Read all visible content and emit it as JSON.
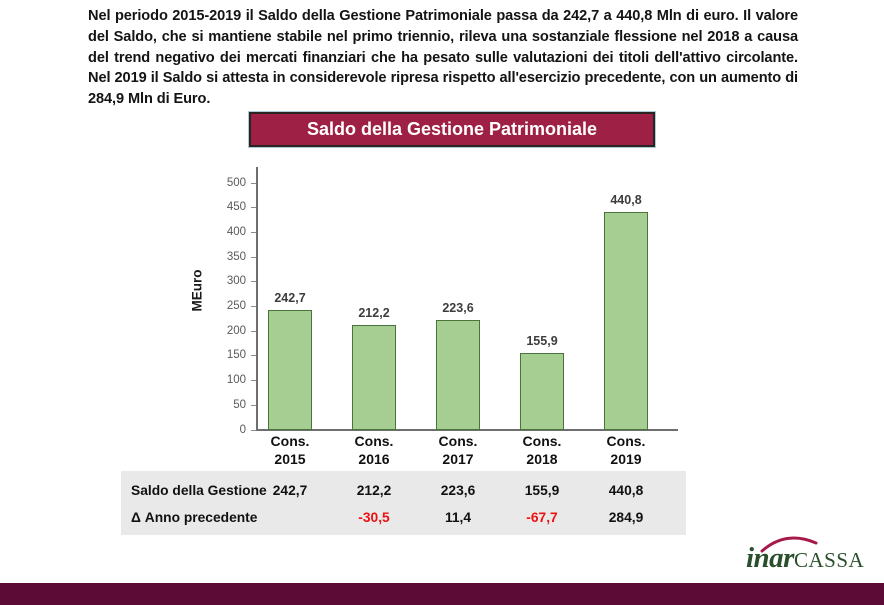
{
  "intro_text": "Nel periodo 2015-2019 il Saldo della Gestione Patrimoniale passa da 242,7 a 440,8 Mln di euro. Il valore del Saldo, che si mantiene stabile nel primo triennio, rileva una sostanziale flessione nel 2018 a causa del trend negativo dei mercati finanziari che ha pesato sulle valutazioni dei titoli dell'attivo circolante. Nel 2019 il Saldo si attesta in considerevole ripresa rispetto all'esercizio precedente, con un aumento di 284,9 Mln di Euro.",
  "banner": {
    "title": "Saldo della Gestione Patrimoniale",
    "bg_color": "#9e2045",
    "text_color": "#ffffff"
  },
  "chart_data": {
    "type": "bar",
    "title": "Saldo della Gestione Patrimoniale",
    "xlabel": "",
    "ylabel": "MEuro",
    "ylim": [
      0,
      500
    ],
    "ytick_step": 50,
    "grid": false,
    "legend": false,
    "category_prefix": "Cons.",
    "categories": [
      "2015",
      "2016",
      "2017",
      "2018",
      "2019"
    ],
    "values": [
      242.7,
      212.2,
      223.6,
      155.9,
      440.8
    ],
    "value_labels": [
      "242,7",
      "212,2",
      "223,6",
      "155,9",
      "440,8"
    ],
    "bar_color": "#a6ce92",
    "bar_border_color": "#47753a"
  },
  "table": {
    "negative_color": "#ee1111",
    "text_color": "#111111",
    "bg_color": "#e9e9e9",
    "rows": [
      {
        "label": "Saldo della Gestione",
        "values": [
          "242,7",
          "212,2",
          "223,6",
          "155,9",
          "440,8"
        ],
        "colors": [
          "black",
          "black",
          "black",
          "black",
          "black"
        ]
      },
      {
        "label": "Δ Anno precedente",
        "values": [
          "",
          "-30,5",
          "11,4",
          "-67,7",
          "284,9"
        ],
        "colors": [
          "black",
          "red",
          "black",
          "red",
          "black"
        ]
      }
    ]
  },
  "logo": {
    "part1": "inar",
    "part2": "CASSA",
    "green": "#2a4f2c",
    "swoosh_color": "#a5194b"
  },
  "footer_bar_color": "#5c0a36"
}
